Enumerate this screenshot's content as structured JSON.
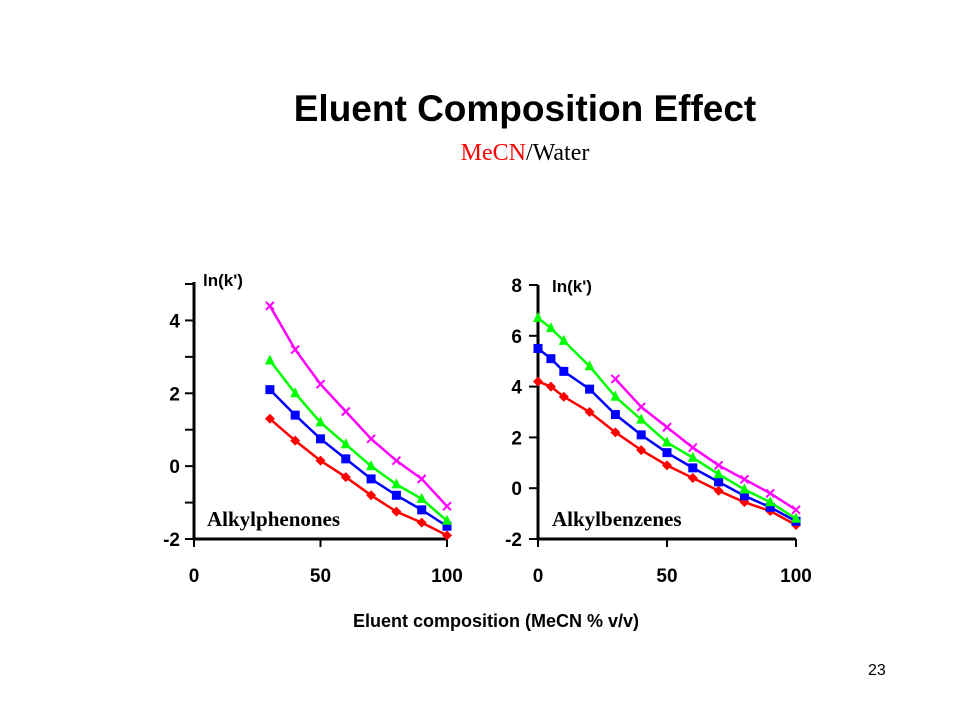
{
  "slide": {
    "title": "Eluent Composition Effect",
    "subtitle_red": "MeCN",
    "subtitle_rest": "/Water",
    "page_number": "23"
  },
  "colors": {
    "red": "#ff0000",
    "blue": "#0000ff",
    "green": "#00ff00",
    "magenta": "#ff00ff",
    "subtitle_accent": "#ff0000"
  },
  "chart_data": [
    {
      "type": "line",
      "panel_label": "Alkylphenones",
      "ylabel": "ln(k')",
      "xlabel": "Eluent composition (MeCN % v/v)",
      "xlim": [
        0,
        100
      ],
      "ylim": [
        -2,
        5
      ],
      "x_ticks": [
        "0",
        "50",
        "100"
      ],
      "y_ticks": [
        "-2",
        "0",
        "2",
        "4"
      ],
      "series": [
        {
          "color": "#ff0000",
          "marker": "diamond",
          "x": [
            30,
            40,
            50,
            60,
            70,
            80,
            90,
            100
          ],
          "y": [
            1.3,
            0.7,
            0.15,
            -0.3,
            -0.8,
            -1.25,
            -1.55,
            -1.9
          ]
        },
        {
          "color": "#0000ff",
          "marker": "square",
          "x": [
            30,
            40,
            50,
            60,
            70,
            80,
            90,
            100
          ],
          "y": [
            2.1,
            1.4,
            0.75,
            0.2,
            -0.35,
            -0.8,
            -1.2,
            -1.65
          ]
        },
        {
          "color": "#00ff00",
          "marker": "triangle",
          "x": [
            30,
            40,
            50,
            60,
            70,
            80,
            90,
            100
          ],
          "y": [
            2.9,
            2.0,
            1.2,
            0.6,
            0.0,
            -0.5,
            -0.9,
            -1.5
          ]
        },
        {
          "color": "#ff00ff",
          "marker": "x",
          "x": [
            30,
            40,
            50,
            60,
            70,
            80,
            90,
            100
          ],
          "y": [
            4.4,
            3.2,
            2.25,
            1.5,
            0.75,
            0.15,
            -0.35,
            -1.1
          ]
        }
      ]
    },
    {
      "type": "line",
      "panel_label": "Alkylbenzenes",
      "ylabel": "ln(k')",
      "xlabel": "Eluent composition (MeCN % v/v)",
      "xlim": [
        0,
        100
      ],
      "ylim": [
        -2,
        8
      ],
      "x_ticks": [
        "0",
        "50",
        "100"
      ],
      "y_ticks": [
        "-2",
        "0",
        "2",
        "4",
        "6",
        "8"
      ],
      "series": [
        {
          "color": "#ff0000",
          "marker": "diamond",
          "x": [
            0,
            5,
            10,
            20,
            30,
            40,
            50,
            60,
            70,
            80,
            90,
            100
          ],
          "y": [
            4.2,
            4.0,
            3.6,
            3.0,
            2.2,
            1.5,
            0.9,
            0.4,
            -0.1,
            -0.55,
            -0.9,
            -1.45
          ]
        },
        {
          "color": "#0000ff",
          "marker": "square",
          "x": [
            0,
            5,
            10,
            20,
            30,
            40,
            50,
            60,
            70,
            80,
            90,
            100
          ],
          "y": [
            5.5,
            5.1,
            4.6,
            3.9,
            2.9,
            2.1,
            1.4,
            0.8,
            0.25,
            -0.3,
            -0.75,
            -1.3
          ]
        },
        {
          "color": "#00ff00",
          "marker": "triangle",
          "x": [
            0,
            5,
            10,
            20,
            30,
            40,
            50,
            60,
            70,
            80,
            90,
            100
          ],
          "y": [
            6.7,
            6.3,
            5.8,
            4.8,
            3.6,
            2.7,
            1.8,
            1.2,
            0.55,
            -0.05,
            -0.55,
            -1.2
          ]
        },
        {
          "color": "#ff00ff",
          "marker": "x",
          "x": [
            30,
            40,
            50,
            60,
            70,
            80,
            90,
            100
          ],
          "y": [
            4.3,
            3.2,
            2.4,
            1.6,
            0.9,
            0.35,
            -0.2,
            -0.85
          ]
        }
      ]
    }
  ]
}
